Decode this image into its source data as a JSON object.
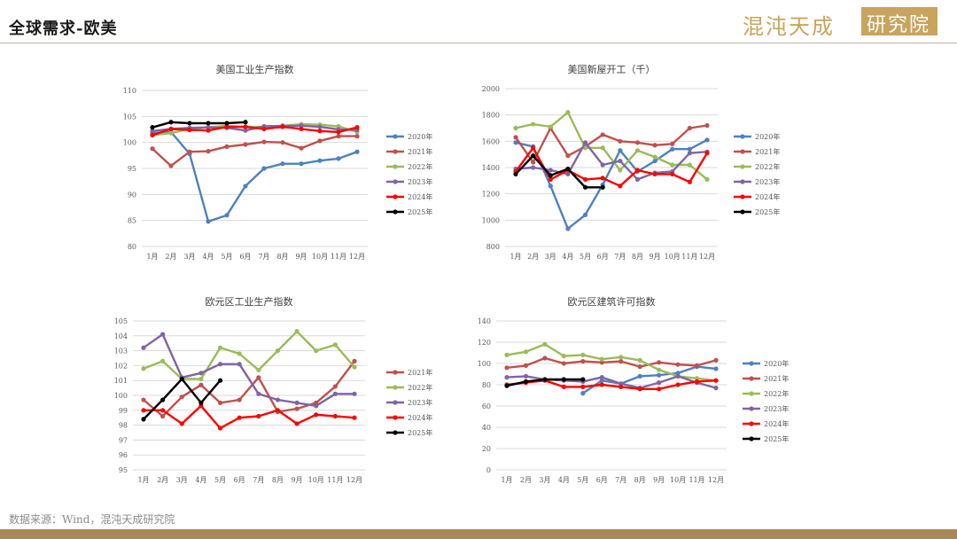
{
  "page": {
    "title": "全球需求-欧美",
    "source": "数据来源：Wind，混沌天成研究院"
  },
  "logo": {
    "text_left": "混沌天成",
    "text_box": "研究院"
  },
  "colors": {
    "2020年": "#4f81bd",
    "2021年": "#c0504d",
    "2022年": "#9bbb59",
    "2023年": "#8064a2",
    "2024年": "#ff0000",
    "2025年": "#000000",
    "grid": "#d9d9d9",
    "axis_text": "#595959",
    "brand_gold": "#c9a45c"
  },
  "chart_data": [
    {
      "type": "line",
      "title": "美国工业生产指数",
      "categories": [
        "1月",
        "2月",
        "3月",
        "4月",
        "5月",
        "6月",
        "7月",
        "8月",
        "9月",
        "10月",
        "11月",
        "12月"
      ],
      "ylim": [
        80,
        110
      ],
      "ystep": 5,
      "grid": true,
      "legend": "right",
      "series": [
        {
          "name": "2020年",
          "values": [
            101.8,
            102.0,
            97.8,
            84.8,
            86.0,
            91.6,
            95.0,
            95.9,
            95.9,
            96.5,
            96.9,
            98.2
          ]
        },
        {
          "name": "2021年",
          "values": [
            98.8,
            95.5,
            98.2,
            98.3,
            99.2,
            99.6,
            100.1,
            100.0,
            98.9,
            100.3,
            101.2,
            101.2
          ]
        },
        {
          "name": "2022年",
          "values": [
            101.4,
            101.8,
            102.6,
            102.9,
            103.2,
            103.0,
            103.0,
            103.2,
            103.5,
            103.4,
            103.1,
            102.0
          ]
        },
        {
          "name": "2023年",
          "values": [
            102.2,
            102.6,
            102.8,
            102.9,
            102.8,
            102.3,
            103.1,
            103.2,
            103.2,
            103.0,
            102.5,
            102.4
          ]
        },
        {
          "name": "2024年",
          "values": [
            101.4,
            102.6,
            102.4,
            102.3,
            103.0,
            103.0,
            102.6,
            103.0,
            102.6,
            102.2,
            102.0,
            102.9
          ]
        },
        {
          "name": "2025年",
          "values": [
            102.9,
            103.9,
            103.7,
            103.7,
            103.7,
            103.9,
            null,
            null,
            null,
            null,
            null,
            null
          ]
        }
      ]
    },
    {
      "type": "line",
      "title": "美国新屋开工（千）",
      "categories": [
        "1月",
        "2月",
        "3月",
        "4月",
        "5月",
        "6月",
        "7月",
        "8月",
        "9月",
        "10月",
        "11月",
        "12月"
      ],
      "ylim": [
        800,
        2000
      ],
      "ystep": 200,
      "grid": true,
      "legend": "right",
      "series": [
        {
          "name": "2020年",
          "values": [
            1590,
            1560,
            1260,
            935,
            1040,
            1270,
            1530,
            1370,
            1450,
            1540,
            1540,
            1610
          ]
        },
        {
          "name": "2021年",
          "values": [
            1630,
            1440,
            1700,
            1490,
            1560,
            1650,
            1600,
            1590,
            1570,
            1580,
            1700,
            1720
          ]
        },
        {
          "name": "2022年",
          "values": [
            1700,
            1730,
            1710,
            1820,
            1550,
            1550,
            1380,
            1530,
            1480,
            1420,
            1420,
            1310
          ]
        },
        {
          "name": "2023年",
          "values": [
            1390,
            1400,
            1380,
            1350,
            1590,
            1420,
            1450,
            1310,
            1360,
            1370,
            1510,
            1520
          ]
        },
        {
          "name": "2024年",
          "values": [
            1370,
            1550,
            1310,
            1380,
            1310,
            1320,
            1260,
            1380,
            1350,
            1350,
            1290,
            1510
          ]
        },
        {
          "name": "2025年",
          "values": [
            1350,
            1490,
            1340,
            1390,
            1250,
            1250,
            null,
            null,
            null,
            null,
            null,
            null
          ]
        }
      ]
    },
    {
      "type": "line",
      "title": "欧元区工业生产指数",
      "categories": [
        "1月",
        "2月",
        "3月",
        "4月",
        "5月",
        "6月",
        "7月",
        "8月",
        "9月",
        "10月",
        "11月",
        "12月"
      ],
      "ylim": [
        95,
        105
      ],
      "ystep": 1,
      "grid": true,
      "legend": "right",
      "series": [
        {
          "name": "2021年",
          "values": [
            99.7,
            98.6,
            99.9,
            100.7,
            99.5,
            99.7,
            101.2,
            98.9,
            99.1,
            99.5,
            100.6,
            102.3
          ]
        },
        {
          "name": "2022年",
          "values": [
            101.8,
            102.3,
            101.1,
            101.1,
            103.2,
            102.8,
            101.7,
            103.0,
            104.3,
            103.0,
            103.4,
            101.9
          ]
        },
        {
          "name": "2023年",
          "values": [
            103.2,
            104.1,
            101.2,
            101.5,
            102.1,
            102.1,
            100.1,
            99.7,
            99.5,
            99.3,
            100.1,
            100.1
          ]
        },
        {
          "name": "2024年",
          "values": [
            99.0,
            99.0,
            98.1,
            99.3,
            97.8,
            98.5,
            98.6,
            99.0,
            98.1,
            98.7,
            98.6,
            98.5
          ]
        },
        {
          "name": "2025年",
          "values": [
            98.4,
            99.7,
            101.1,
            99.5,
            101.0,
            null,
            null,
            null,
            null,
            null,
            null,
            null
          ]
        }
      ]
    },
    {
      "type": "line",
      "title": "欧元区建筑许可指数",
      "categories": [
        "1月",
        "2月",
        "3月",
        "4月",
        "5月",
        "6月",
        "7月",
        "8月",
        "9月",
        "10月",
        "11月",
        "12月"
      ],
      "ylim": [
        0,
        140
      ],
      "ystep": 20,
      "grid": true,
      "legend": "right",
      "series": [
        {
          "name": "2020年",
          "values": [
            null,
            null,
            null,
            null,
            72,
            84,
            81,
            88,
            89,
            91,
            97,
            95
          ]
        },
        {
          "name": "2021年",
          "values": [
            96,
            98,
            105,
            100,
            102,
            101,
            102,
            97,
            101,
            99,
            98,
            103
          ]
        },
        {
          "name": "2022年",
          "values": [
            108,
            111,
            118,
            107,
            108,
            104,
            106,
            103,
            94,
            88,
            86,
            84
          ]
        },
        {
          "name": "2023年",
          "values": [
            87,
            88,
            85,
            84,
            83,
            87,
            81,
            77,
            82,
            88,
            82,
            77
          ]
        },
        {
          "name": "2024年",
          "values": [
            80,
            82,
            84,
            78,
            78,
            80,
            78,
            76,
            76,
            80,
            83,
            84
          ]
        },
        {
          "name": "2025年",
          "values": [
            79,
            83,
            85,
            85,
            85,
            null,
            null,
            null,
            null,
            null,
            null,
            null
          ]
        }
      ]
    }
  ]
}
